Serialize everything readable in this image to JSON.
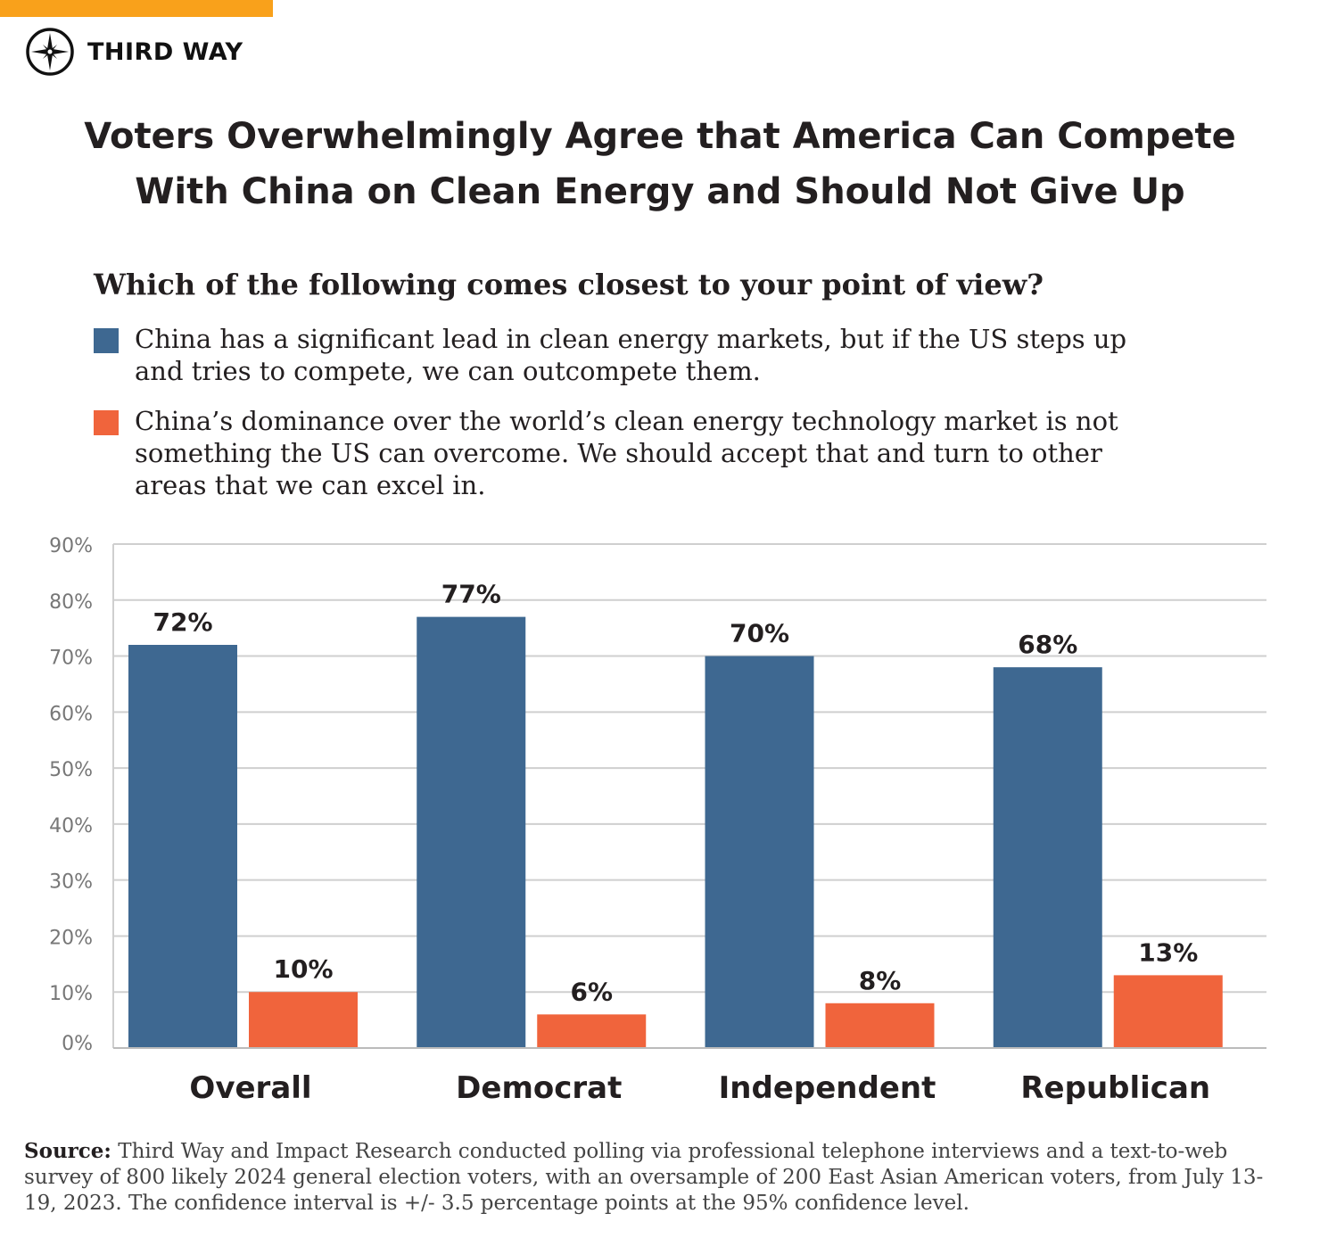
{
  "brand": {
    "name": "THIRD WAY",
    "accent_color": "#f9a11b"
  },
  "title_lines": [
    "Voters Overwhelmingly Agree that America Can Compete",
    "With China on Clean Energy and Should Not Give Up"
  ],
  "question": "Which of the following comes closest to your point of view?",
  "legend": [
    {
      "color": "#3e6891",
      "text": "China has a significant lead in clean energy markets, but if the US steps up and tries to compete, we can outcompete them."
    },
    {
      "color": "#f0643c",
      "text": "China’s dominance over the world’s clean energy technology market is not something the US can overcome. We should accept that and turn to other areas that we can excel in."
    }
  ],
  "chart_data": {
    "type": "bar",
    "categories": [
      "Overall",
      "Democrat",
      "Independent",
      "Republican"
    ],
    "series": [
      {
        "color": "#3e6891",
        "values": [
          72,
          77,
          70,
          68
        ],
        "labels": [
          "72%",
          "77%",
          "70%",
          "68%"
        ]
      },
      {
        "color": "#f0643c",
        "values": [
          10,
          6,
          8,
          13
        ],
        "labels": [
          "10%",
          "6%",
          "8%",
          "13%"
        ]
      }
    ],
    "ylim": [
      0,
      90
    ],
    "yticks": [
      "0%",
      "10%",
      "20%",
      "30%",
      "40%",
      "50%",
      "60%",
      "70%",
      "80%",
      "90%"
    ],
    "grid": true,
    "legend_placement": "top"
  },
  "source": {
    "label": "Source:",
    "text": "Third Way and Impact Research conducted polling via professional telephone interviews and a text-to-web survey of 800 likely 2024 general election voters, with an oversample of 200 East Asian American voters, from July 13-19, 2023. The confidence interval is +/- 3.5 percentage points at the 95% confidence level."
  }
}
